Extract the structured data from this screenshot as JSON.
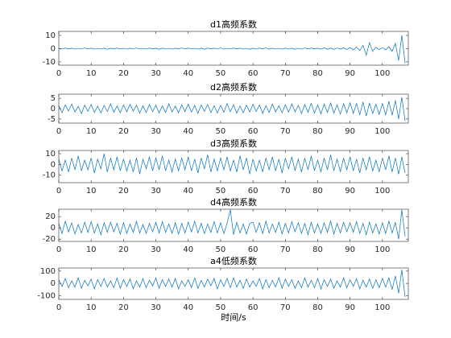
{
  "chart_data": [
    {
      "type": "line",
      "title": "d1高频系数",
      "color": "#0072BD",
      "xlim": [
        0,
        108
      ],
      "ylim": [
        -12.5,
        13
      ],
      "xticks": [
        0,
        10,
        20,
        30,
        40,
        50,
        60,
        70,
        80,
        90,
        100
      ],
      "yticks": [
        -10,
        0,
        10
      ],
      "x": [
        0,
        1,
        2,
        3,
        4,
        5,
        6,
        7,
        8,
        9,
        10,
        11,
        12,
        13,
        14,
        15,
        16,
        17,
        18,
        19,
        20,
        21,
        22,
        23,
        24,
        25,
        26,
        27,
        28,
        29,
        30,
        31,
        32,
        33,
        34,
        35,
        36,
        37,
        38,
        39,
        40,
        41,
        42,
        43,
        44,
        45,
        46,
        47,
        48,
        49,
        50,
        51,
        52,
        53,
        54,
        55,
        56,
        57,
        58,
        59,
        60,
        61,
        62,
        63,
        64,
        65,
        66,
        67,
        68,
        69,
        70,
        71,
        72,
        73,
        74,
        75,
        76,
        77,
        78,
        79,
        80,
        81,
        82,
        83,
        84,
        85,
        86,
        87,
        88,
        89,
        90,
        91,
        92,
        93,
        94,
        95,
        96,
        97,
        98,
        99,
        100,
        101,
        102,
        103,
        104,
        105,
        106,
        107
      ],
      "values": [
        0.2,
        -0.3,
        0.4,
        -0.2,
        0.3,
        -0.4,
        0.2,
        -0.3,
        0.5,
        -0.2,
        0.3,
        -0.4,
        0.2,
        -0.3,
        0.4,
        -0.5,
        0.3,
        -0.2,
        0.4,
        -0.3,
        0.2,
        -0.4,
        0.3,
        -0.3,
        0.5,
        -0.4,
        0.2,
        -0.3,
        0.4,
        -0.2,
        0.3,
        -0.5,
        0.4,
        -0.3,
        0.2,
        -0.4,
        0.3,
        -0.2,
        0.5,
        -0.3,
        0.4,
        -0.3,
        0.2,
        -0.4,
        0.3,
        -0.5,
        0.4,
        -0.2,
        0.3,
        -0.3,
        0.5,
        -0.4,
        0.2,
        -0.3,
        0.4,
        -0.2,
        0.3,
        -0.4,
        0.2,
        -0.5,
        0.3,
        -0.3,
        0.4,
        -0.2,
        0.5,
        -0.4,
        0.3,
        -0.3,
        0.2,
        -0.4,
        0.4,
        -0.3,
        0.3,
        -0.5,
        0.2,
        -0.4,
        0.5,
        -0.3,
        0.4,
        -0.2,
        0.3,
        -0.4,
        0.6,
        -0.5,
        0.4,
        -0.6,
        0.5,
        -0.4,
        0.6,
        -0.7,
        0.8,
        -0.9,
        1.2,
        -1.5,
        2.5,
        -5,
        4.5,
        -2,
        1,
        -0.8,
        0.7,
        -0.9,
        1.5,
        -2,
        4,
        -9,
        10,
        -11
      ]
    },
    {
      "type": "line",
      "title": "d2高频系数",
      "color": "#0072BD",
      "xlim": [
        0,
        108
      ],
      "ylim": [
        -7,
        7
      ],
      "xticks": [
        0,
        10,
        20,
        30,
        40,
        50,
        60,
        70,
        80,
        90,
        100
      ],
      "yticks": [
        -5,
        0,
        5
      ],
      "x": [
        0,
        1,
        2,
        3,
        4,
        5,
        6,
        7,
        8,
        9,
        10,
        11,
        12,
        13,
        14,
        15,
        16,
        17,
        18,
        19,
        20,
        21,
        22,
        23,
        24,
        25,
        26,
        27,
        28,
        29,
        30,
        31,
        32,
        33,
        34,
        35,
        36,
        37,
        38,
        39,
        40,
        41,
        42,
        43,
        44,
        45,
        46,
        47,
        48,
        49,
        50,
        51,
        52,
        53,
        54,
        55,
        56,
        57,
        58,
        59,
        60,
        61,
        62,
        63,
        64,
        65,
        66,
        67,
        68,
        69,
        70,
        71,
        72,
        73,
        74,
        75,
        76,
        77,
        78,
        79,
        80,
        81,
        82,
        83,
        84,
        85,
        86,
        87,
        88,
        89,
        90,
        91,
        92,
        93,
        94,
        95,
        96,
        97,
        98,
        99,
        100,
        101,
        102,
        103,
        104,
        105,
        106,
        107
      ],
      "values": [
        1.5,
        -2,
        1.8,
        -1.2,
        2.2,
        -1.6,
        1.1,
        -2.4,
        1.7,
        -1.3,
        2,
        -1.8,
        1.2,
        -2.1,
        1.6,
        -1.4,
        2.3,
        -1.7,
        1.3,
        -2,
        1.8,
        -1.5,
        2.1,
        -1.2,
        1.6,
        -2.2,
        1.4,
        -1.9,
        2,
        -1.5,
        1.7,
        -2.1,
        1.3,
        -1.8,
        2.4,
        -1.6,
        1.2,
        -2,
        1.9,
        -1.4,
        2.2,
        -1.7,
        1.5,
        -2.3,
        1.8,
        -1.3,
        2,
        -1.9,
        1.4,
        -2.1,
        1.6,
        -1.8,
        2.5,
        -1.5,
        1.9,
        -2.2,
        1.3,
        -2,
        1.7,
        -1.6,
        2.1,
        -1.4,
        1.8,
        -2.3,
        1.5,
        -1.9,
        2.2,
        -1.6,
        1.4,
        -2,
        1.9,
        -1.7,
        2.3,
        -1.5,
        1.6,
        -2.4,
        2,
        -1.8,
        2.6,
        -2.1,
        1.8,
        -2.5,
        2.2,
        -1.9,
        2.7,
        -2.2,
        1.9,
        -2.6,
        2.4,
        -2,
        2.8,
        -2.3,
        2.5,
        -3,
        3.2,
        -3.5,
        2.6,
        -2.4,
        2.2,
        -2.8,
        2.5,
        -3,
        3.5,
        -3.2,
        4,
        -5,
        5.5,
        -6
      ]
    },
    {
      "type": "line",
      "title": "d3高频系数",
      "color": "#0072BD",
      "xlim": [
        0,
        108
      ],
      "ylim": [
        -17,
        13
      ],
      "xticks": [
        0,
        10,
        20,
        30,
        40,
        50,
        60,
        70,
        80,
        90,
        100
      ],
      "yticks": [
        -10,
        0,
        10
      ],
      "x": [
        0,
        1,
        2,
        3,
        4,
        5,
        6,
        7,
        8,
        9,
        10,
        11,
        12,
        13,
        14,
        15,
        16,
        17,
        18,
        19,
        20,
        21,
        22,
        23,
        24,
        25,
        26,
        27,
        28,
        29,
        30,
        31,
        32,
        33,
        34,
        35,
        36,
        37,
        38,
        39,
        40,
        41,
        42,
        43,
        44,
        45,
        46,
        47,
        48,
        49,
        50,
        51,
        52,
        53,
        54,
        55,
        56,
        57,
        58,
        59,
        60,
        61,
        62,
        63,
        64,
        65,
        66,
        67,
        68,
        69,
        70,
        71,
        72,
        73,
        74,
        75,
        76,
        77,
        78,
        79,
        80,
        81,
        82,
        83,
        84,
        85,
        86,
        87,
        88,
        89,
        90,
        91,
        92,
        93,
        94,
        95,
        96,
        97,
        98,
        99,
        100,
        101,
        102,
        103,
        104,
        105,
        106,
        107
      ],
      "values": [
        5,
        -6,
        4,
        -7,
        6,
        -5,
        8,
        -6,
        4,
        -5,
        6,
        -8,
        5,
        -4,
        10,
        -7,
        6,
        -5,
        7,
        -6,
        5,
        -6,
        4,
        -7,
        6,
        -9,
        5,
        -4,
        7,
        -6,
        6,
        -5,
        8,
        -6,
        4,
        -7,
        5,
        -6,
        6,
        -5,
        7,
        -6,
        5,
        -8,
        6,
        -4,
        9,
        -7,
        5,
        -6,
        6,
        -5,
        7,
        -6,
        4,
        -7,
        8,
        -5,
        6,
        -9,
        5,
        -6,
        4,
        -7,
        6,
        -5,
        7,
        -6,
        5,
        -8,
        6,
        -4,
        7,
        -6,
        5,
        -7,
        6,
        -5,
        8,
        -6,
        4,
        -7,
        6,
        -5,
        9,
        -6,
        5,
        -7,
        6,
        -5,
        7,
        -6,
        5,
        -8,
        6,
        -5,
        7,
        -6,
        4,
        -7,
        6,
        -5,
        8,
        -7,
        6,
        -9,
        7,
        -8
      ]
    },
    {
      "type": "line",
      "title": "d4高频系数",
      "color": "#0072BD",
      "xlim": [
        0,
        108
      ],
      "ylim": [
        -24,
        33
      ],
      "xticks": [
        0,
        10,
        20,
        30,
        40,
        50,
        60,
        70,
        80,
        90,
        100
      ],
      "yticks": [
        -20,
        0,
        20
      ],
      "x": [
        0,
        1,
        2,
        3,
        4,
        5,
        6,
        7,
        8,
        9,
        10,
        11,
        12,
        13,
        14,
        15,
        16,
        17,
        18,
        19,
        20,
        21,
        22,
        23,
        24,
        25,
        26,
        27,
        28,
        29,
        30,
        31,
        32,
        33,
        34,
        35,
        36,
        37,
        38,
        39,
        40,
        41,
        42,
        43,
        44,
        45,
        46,
        47,
        48,
        49,
        50,
        51,
        52,
        53,
        54,
        55,
        56,
        57,
        58,
        59,
        60,
        61,
        62,
        63,
        64,
        65,
        66,
        67,
        68,
        69,
        70,
        71,
        72,
        73,
        74,
        75,
        76,
        77,
        78,
        79,
        80,
        81,
        82,
        83,
        84,
        85,
        86,
        87,
        88,
        89,
        90,
        91,
        92,
        93,
        94,
        95,
        96,
        97,
        98,
        99,
        100,
        101,
        102,
        103,
        104,
        105,
        106,
        107
      ],
      "values": [
        8,
        -10,
        12,
        -7,
        9,
        -11,
        6,
        -9,
        10,
        -8,
        11,
        -9,
        7,
        -12,
        9,
        -8,
        10,
        -7,
        8,
        -11,
        9,
        -10,
        7,
        -8,
        12,
        -9,
        6,
        -10,
        8,
        -7,
        10,
        -9,
        11,
        -8,
        7,
        -10,
        9,
        -11,
        8,
        -9,
        10,
        -7,
        12,
        -9,
        8,
        -10,
        7,
        -8,
        11,
        -9,
        9,
        -10,
        8,
        32,
        -12,
        10,
        -9,
        7,
        -11,
        8,
        10,
        -8,
        9,
        -10,
        12,
        -9,
        7,
        -8,
        10,
        -11,
        8,
        -9,
        11,
        -7,
        9,
        -10,
        8,
        -12,
        10,
        -9,
        7,
        -10,
        9,
        -8,
        12,
        -11,
        8,
        -9,
        10,
        -7,
        9,
        -8,
        11,
        -10,
        8,
        -12,
        10,
        -9,
        7,
        -11,
        9,
        -10,
        12,
        -9,
        10,
        -20,
        32,
        -15
      ]
    },
    {
      "type": "line",
      "title": "a4低频系数",
      "x_label": "时间/s",
      "color": "#0072BD",
      "xlim": [
        0,
        108
      ],
      "ylim": [
        -130,
        125
      ],
      "xticks": [
        0,
        10,
        20,
        30,
        40,
        50,
        60,
        70,
        80,
        90,
        100
      ],
      "yticks": [
        -100,
        0,
        100
      ],
      "x": [
        0,
        1,
        2,
        3,
        4,
        5,
        6,
        7,
        8,
        9,
        10,
        11,
        12,
        13,
        14,
        15,
        16,
        17,
        18,
        19,
        20,
        21,
        22,
        23,
        24,
        25,
        26,
        27,
        28,
        29,
        30,
        31,
        32,
        33,
        34,
        35,
        36,
        37,
        38,
        39,
        40,
        41,
        42,
        43,
        44,
        45,
        46,
        47,
        48,
        49,
        50,
        51,
        52,
        53,
        54,
        55,
        56,
        57,
        58,
        59,
        60,
        61,
        62,
        63,
        64,
        65,
        66,
        67,
        68,
        69,
        70,
        71,
        72,
        73,
        74,
        75,
        76,
        77,
        78,
        79,
        80,
        81,
        82,
        83,
        84,
        85,
        86,
        87,
        88,
        89,
        90,
        91,
        92,
        93,
        94,
        95,
        96,
        97,
        98,
        99,
        100,
        101,
        102,
        103,
        104,
        105,
        106,
        107
      ],
      "values": [
        30,
        -25,
        40,
        -35,
        20,
        -30,
        45,
        -40,
        25,
        -20,
        35,
        -45,
        30,
        -25,
        40,
        -30,
        20,
        -35,
        45,
        -40,
        30,
        -25,
        35,
        -45,
        20,
        -30,
        40,
        -35,
        25,
        -20,
        45,
        -40,
        30,
        -25,
        35,
        -30,
        40,
        -45,
        20,
        -25,
        30,
        -35,
        45,
        -40,
        25,
        -30,
        35,
        -20,
        40,
        -45,
        30,
        -25,
        40,
        -35,
        45,
        -30,
        25,
        -40,
        35,
        -30,
        20,
        -25,
        40,
        -45,
        30,
        -35,
        25,
        -30,
        45,
        -40,
        35,
        -25,
        30,
        -40,
        20,
        -35,
        45,
        -30,
        25,
        -35,
        40,
        -45,
        30,
        -25,
        35,
        -40,
        20,
        -30,
        45,
        -35,
        30,
        -25,
        40,
        -45,
        25,
        -30,
        35,
        -40,
        30,
        -35,
        40,
        -30,
        45,
        -50,
        60,
        -80,
        110,
        -110
      ]
    }
  ]
}
